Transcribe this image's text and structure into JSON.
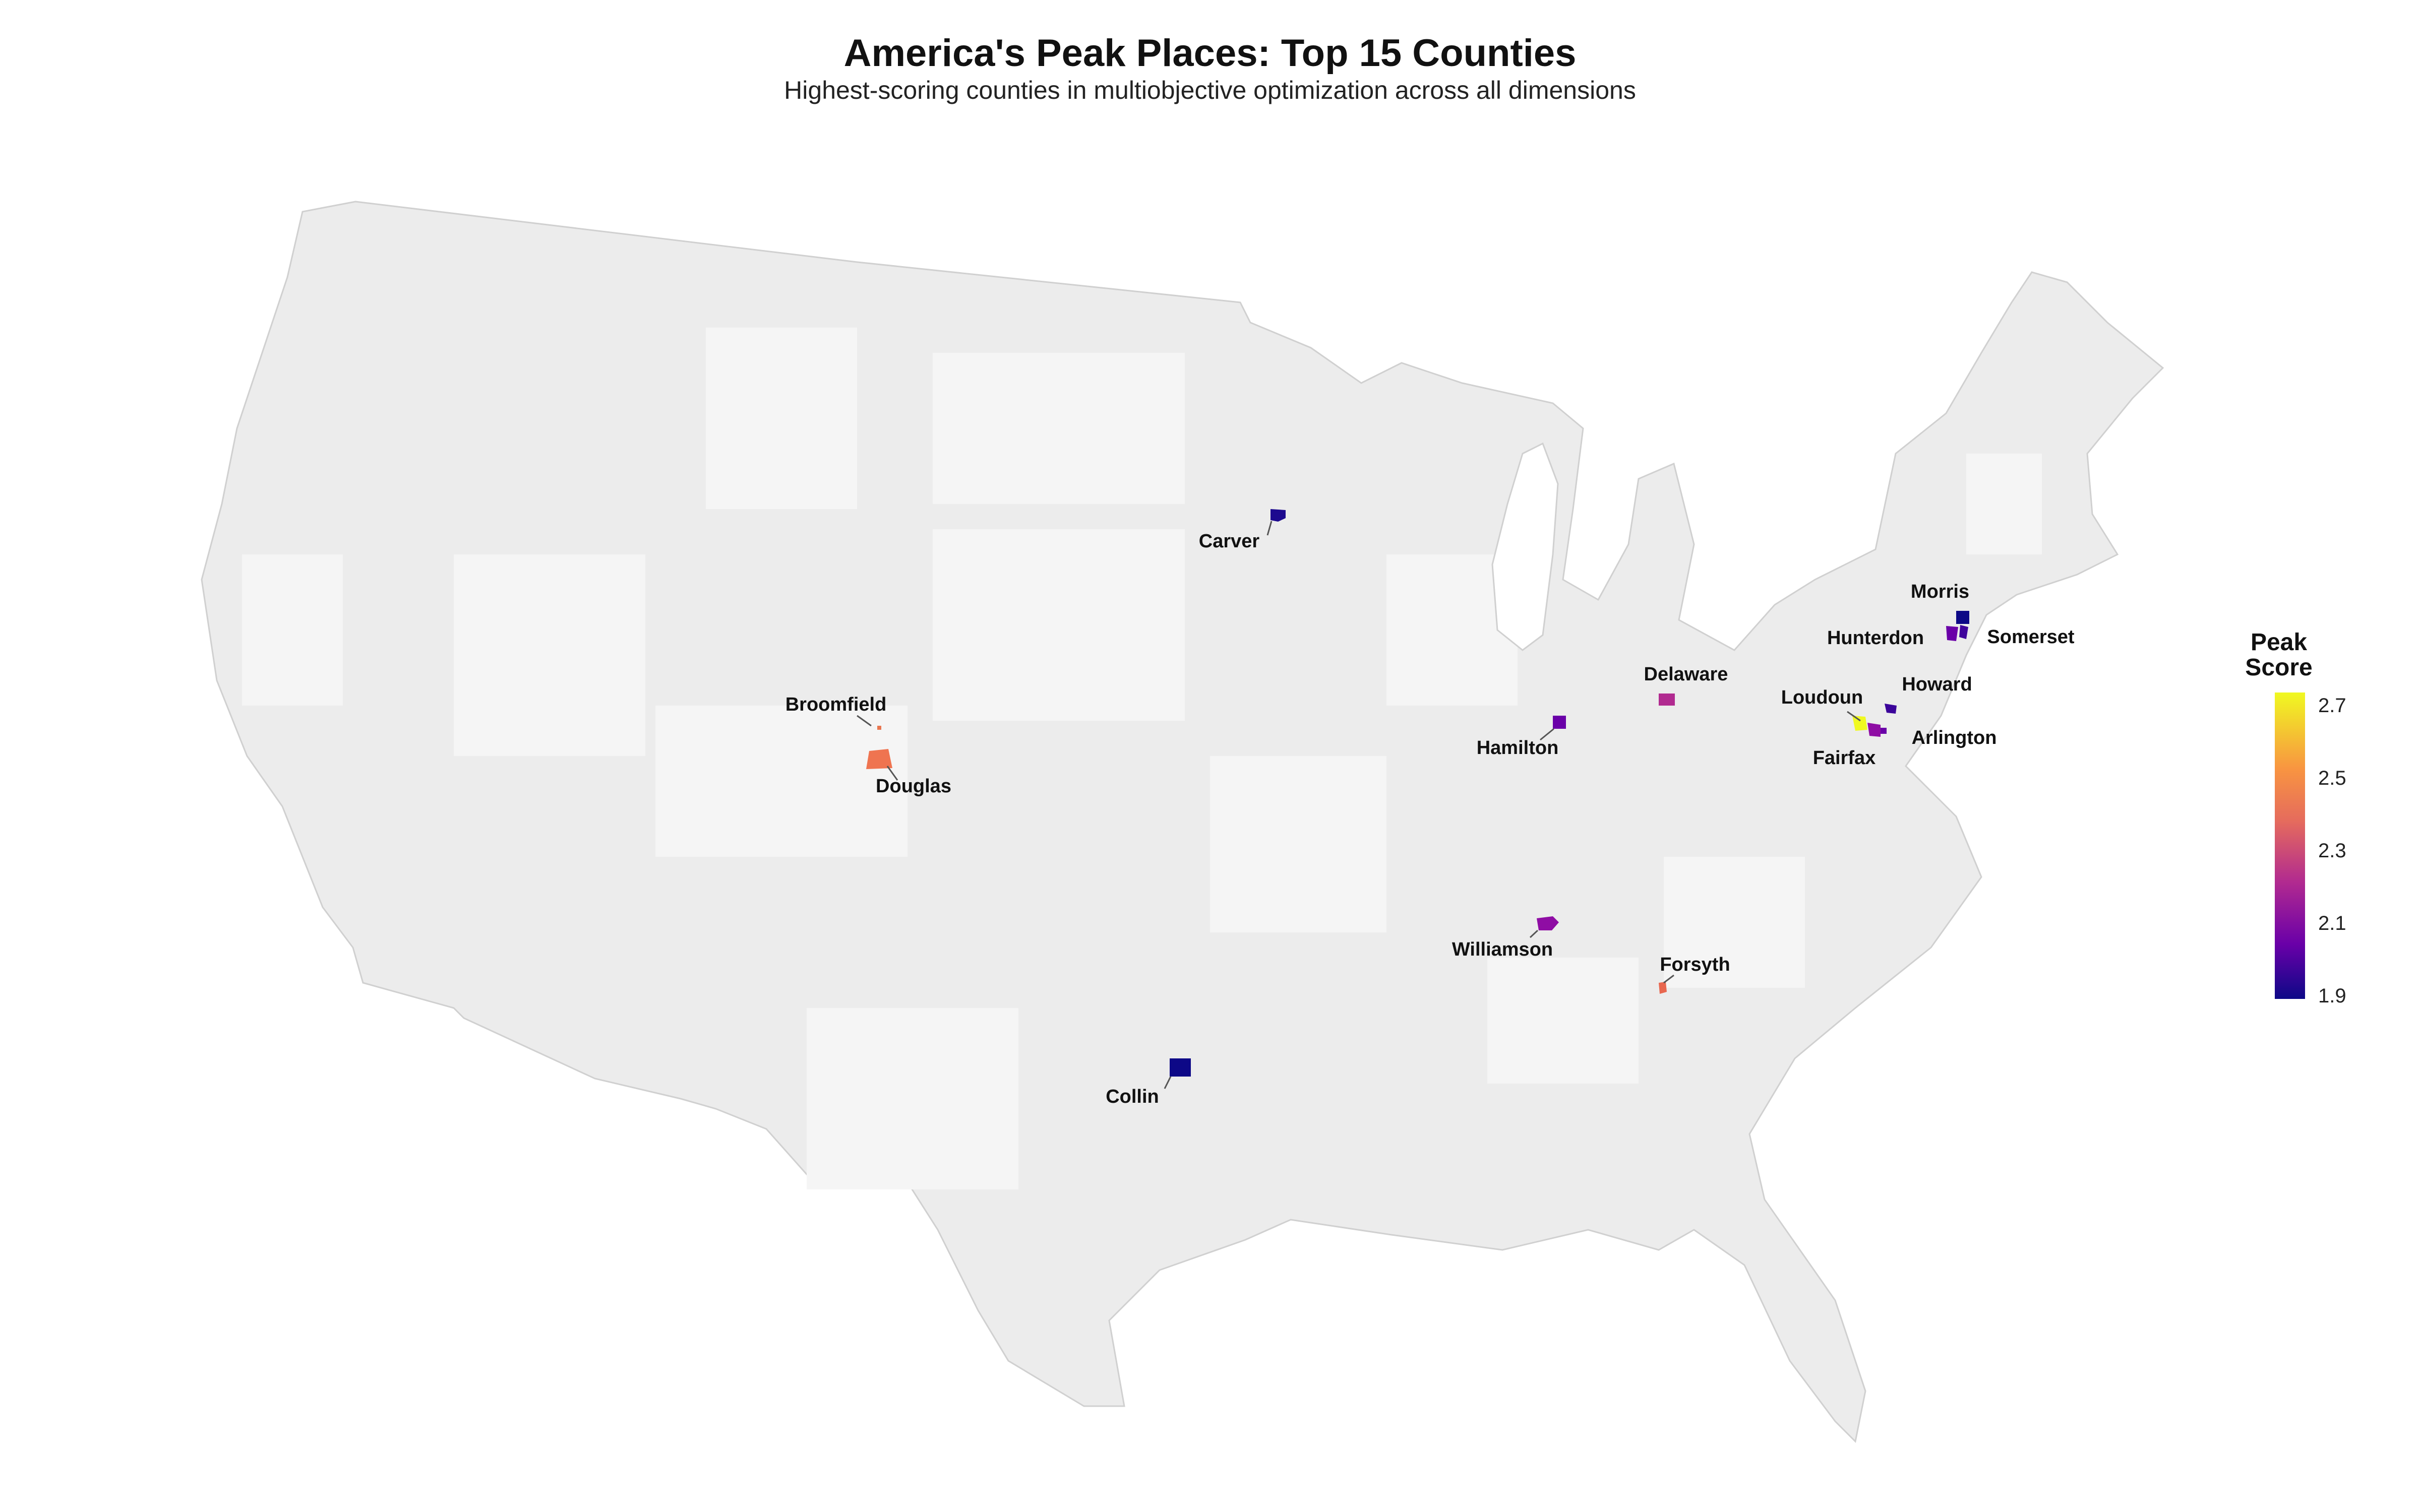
{
  "title": "America's Peak Places: Top 15 Counties",
  "subtitle": "Highest-scoring counties in multiobjective optimization across all dimensions",
  "legend": {
    "title_line1": "Peak",
    "title_line2": "Score",
    "ticks": [
      "2.7",
      "2.5",
      "2.3",
      "2.1",
      "1.9"
    ],
    "colors": [
      "#f0f921",
      "#f89441",
      "#e56b5d",
      "#b12a90",
      "#6a00a8",
      "#0d0887"
    ]
  },
  "counties": [
    {
      "name": "Carver",
      "color": "#1d0a8f"
    },
    {
      "name": "Broomfield",
      "color": "#e8764f"
    },
    {
      "name": "Douglas",
      "color": "#ef7450"
    },
    {
      "name": "Hamilton",
      "color": "#6a00a8"
    },
    {
      "name": "Delaware",
      "color": "#b12a90"
    },
    {
      "name": "Williamson",
      "color": "#8f0da4"
    },
    {
      "name": "Forsyth",
      "color": "#e8674f"
    },
    {
      "name": "Collin",
      "color": "#0d0887"
    },
    {
      "name": "Morris",
      "color": "#0d0887"
    },
    {
      "name": "Hunterdon",
      "color": "#6a00a8"
    },
    {
      "name": "Somerset",
      "color": "#3f049c"
    },
    {
      "name": "Howard",
      "color": "#3b049a"
    },
    {
      "name": "Loudoun",
      "color": "#f0f921"
    },
    {
      "name": "Fairfax",
      "color": "#8f0da4"
    },
    {
      "name": "Arlington",
      "color": "#6a00a8"
    }
  ]
}
